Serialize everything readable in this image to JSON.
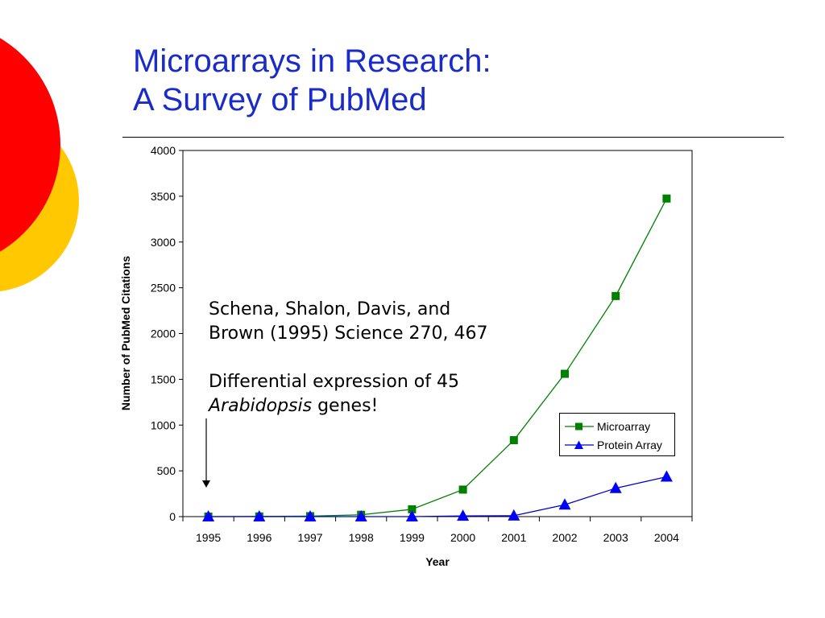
{
  "slide": {
    "title_line1": "Microarrays in Research:",
    "title_line2": "A Survey of PubMed",
    "title_color": "#1a2cc8",
    "decoration_colors": {
      "red": "#ff0000",
      "yellow": "#ffc800"
    }
  },
  "annotation": {
    "line1": "Schena, Shalon, Davis, and",
    "line2": "Brown (1995) Science 270, 467",
    "line3_prefix": "Differential expression of 45",
    "italic_word": "Arabidopsis",
    "line4_suffix": " genes!"
  },
  "chart_data": {
    "type": "line",
    "xlabel": "Year",
    "ylabel": "Number of PubMed Citations",
    "categories": [
      "1995",
      "1996",
      "1997",
      "1998",
      "1999",
      "2000",
      "2001",
      "2002",
      "2003",
      "2004"
    ],
    "ylim": [
      0,
      4000
    ],
    "yticks": [
      0,
      500,
      1000,
      1500,
      2000,
      2500,
      3000,
      3500,
      4000
    ],
    "grid": false,
    "legend_position": "bottom-right",
    "series": [
      {
        "name": "Microarray",
        "values": [
          0,
          2,
          5,
          20,
          80,
          295,
          835,
          1560,
          2410,
          3475
        ],
        "color": "#008000",
        "marker_color": "#008000",
        "marker": "square"
      },
      {
        "name": "Protein Array",
        "values": [
          0,
          0,
          0,
          0,
          0,
          8,
          10,
          130,
          310,
          435
        ],
        "color": "#0000c8",
        "marker_color": "#0000ff",
        "marker": "triangle"
      }
    ]
  }
}
